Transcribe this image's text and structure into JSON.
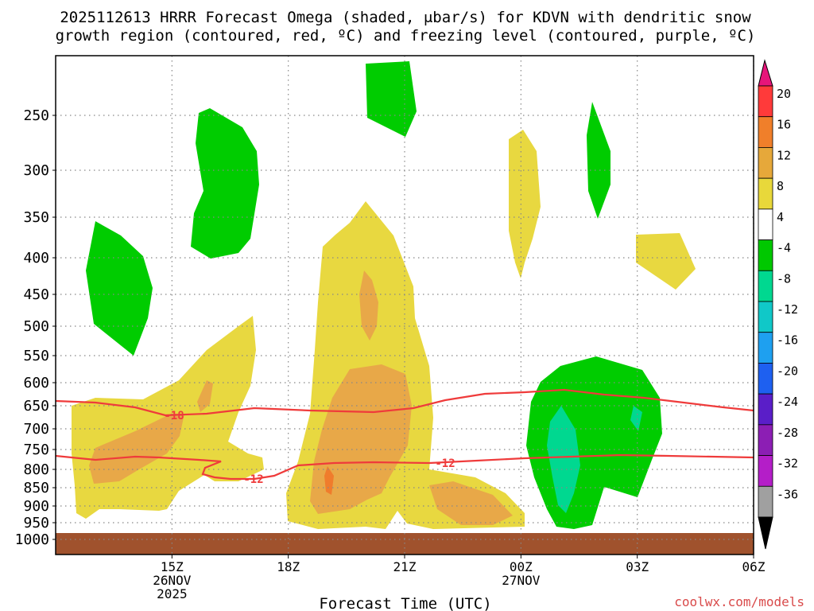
{
  "chart_data": {
    "type": "contour",
    "title_line1": "2025112613 HRRR Forecast Omega (shaded, μbar/s) for KDVN with dendritic snow",
    "title_line2": "growth region (contoured, red, ºC) and freezing level (contoured, purple, ºC)",
    "xlabel": "Forecast Time (UTC)",
    "xlim_hours": [
      13,
      25
    ],
    "x_ticks": [
      {
        "hour": 15,
        "label": "15Z",
        "sub1": "26NOV",
        "sub2": "2025"
      },
      {
        "hour": 17,
        "label": "18Z",
        "sub1": "",
        "sub2": ""
      },
      {
        "hour": 19,
        "label": "21Z",
        "sub1": "",
        "sub2": ""
      },
      {
        "hour": 21,
        "label": "00Z",
        "sub1": "27NOV",
        "sub2": ""
      },
      {
        "hour": 23,
        "label": "03Z",
        "sub1": "",
        "sub2": ""
      },
      {
        "hour": 25,
        "label": "06Z",
        "sub1": "",
        "sub2": ""
      }
    ],
    "y_ticks": [
      "250",
      "300",
      "350",
      "400",
      "450",
      "500",
      "550",
      "600",
      "650",
      "700",
      "750",
      "800",
      "850",
      "900",
      "950",
      "1000"
    ],
    "colorbar": {
      "labels": [
        "20",
        "16",
        "12",
        "8",
        "4",
        "-4",
        "-8",
        "-12",
        "-16",
        "-20",
        "-24",
        "-28",
        "-32",
        "-36"
      ],
      "colors": [
        "#ff3a3a",
        "#f07f2a",
        "#e6a83a",
        "#e8d83a",
        "#ffffff",
        "#00c800",
        "#00d890",
        "#10c8c8",
        "#1ea0f0",
        "#1e60f0",
        "#5a1ec8",
        "#8c1eb4",
        "#b41ec8",
        "#a0a0a0"
      ],
      "top_arrow_color": "#e6157a",
      "bottom_arrow_color": "#000000"
    },
    "colors": {
      "green": "#00cc00",
      "teal": "#00d890",
      "cyan": "#18c8b8",
      "yellow": "#e8d840",
      "orange": "#e8a848",
      "dark_orange": "#f07c2c",
      "terrain": "#a0522d",
      "contour": "#ef3b3b",
      "grid": "#888888",
      "footer": "#d94a4a"
    },
    "contours": [
      {
        "value": -18,
        "label": "-18"
      },
      {
        "value": -12,
        "label": "-12"
      },
      {
        "value": -12,
        "label": "-12"
      }
    ]
  },
  "footer_text": "coolwx.com/models"
}
